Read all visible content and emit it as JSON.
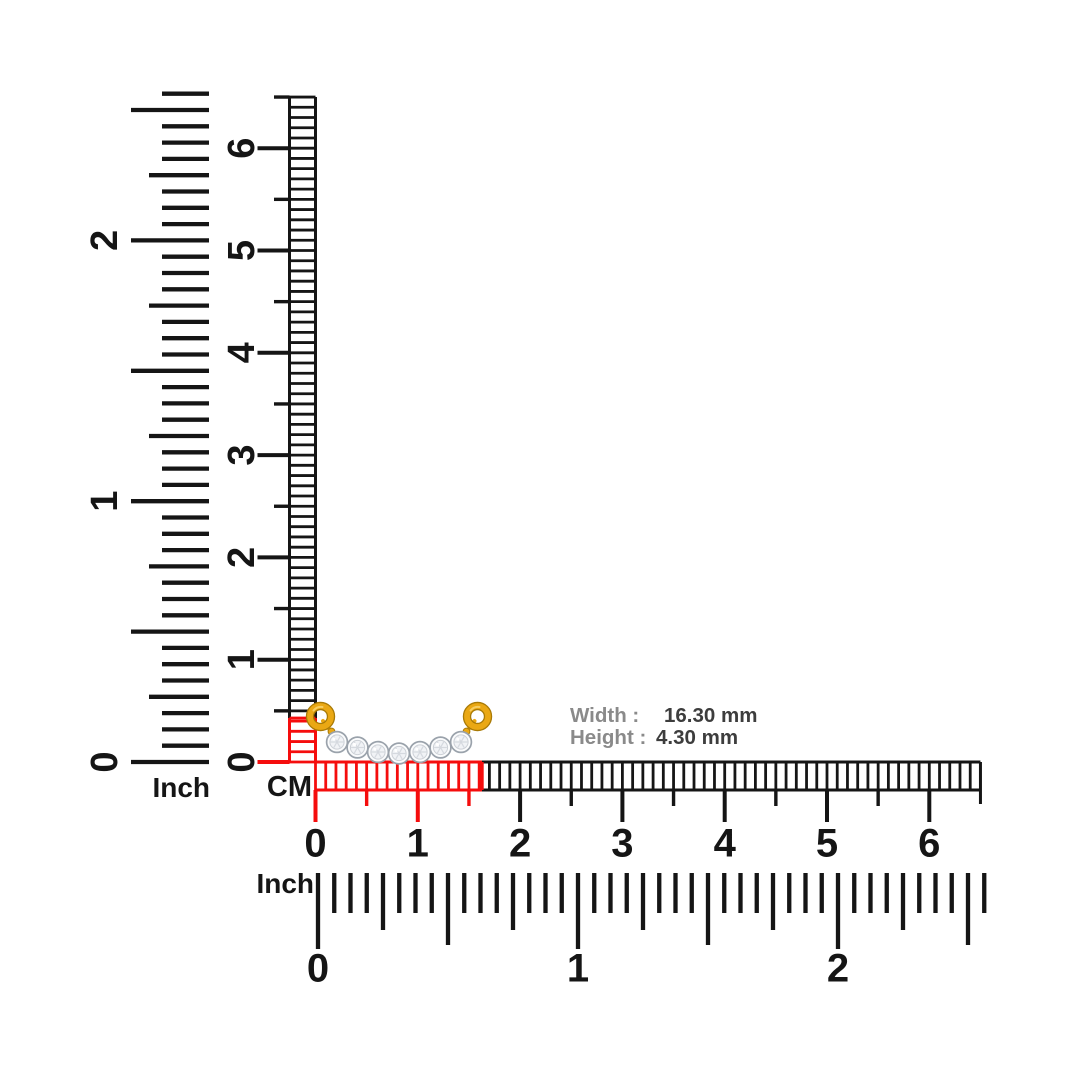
{
  "measurement": {
    "width_label": "Width :",
    "width_value": "16.30 mm",
    "height_label": "Height :",
    "height_value": "4.30 mm"
  },
  "rulers": {
    "vertical_inch": {
      "unit_label": "Inch",
      "numbers": [
        "0",
        "1",
        "2"
      ]
    },
    "vertical_cm": {
      "unit_label": "CM",
      "numbers": [
        "0",
        "1",
        "2",
        "3",
        "4",
        "5",
        "6"
      ]
    },
    "horizontal_cm": {
      "numbers": [
        "0",
        "1",
        "2",
        "3",
        "4",
        "5",
        "6"
      ]
    },
    "horizontal_inch": {
      "unit_label": "Inch",
      "numbers": [
        "0",
        "1",
        "2"
      ]
    }
  },
  "highlight": {
    "width_marked_cm": 1.63,
    "height_marked_cm": 0.43
  },
  "jewelry": {
    "description": "gold-diamond-bar-pendant",
    "diamond_count": 7
  },
  "colors": {
    "ruler_black": "#151515",
    "highlight_red": "#f50d0d",
    "label_gray": "#8a8a8a",
    "value_dark": "#3d3d3d",
    "gold": "#eaa814",
    "gold_dark": "#a97a06",
    "gold_light": "#f7ce62",
    "diamond_fill": "#fbfcfd",
    "diamond_inner": "#f1f3f6",
    "diamond_edge": "#9aa2ab",
    "facet_gray": "#d5d9df"
  }
}
